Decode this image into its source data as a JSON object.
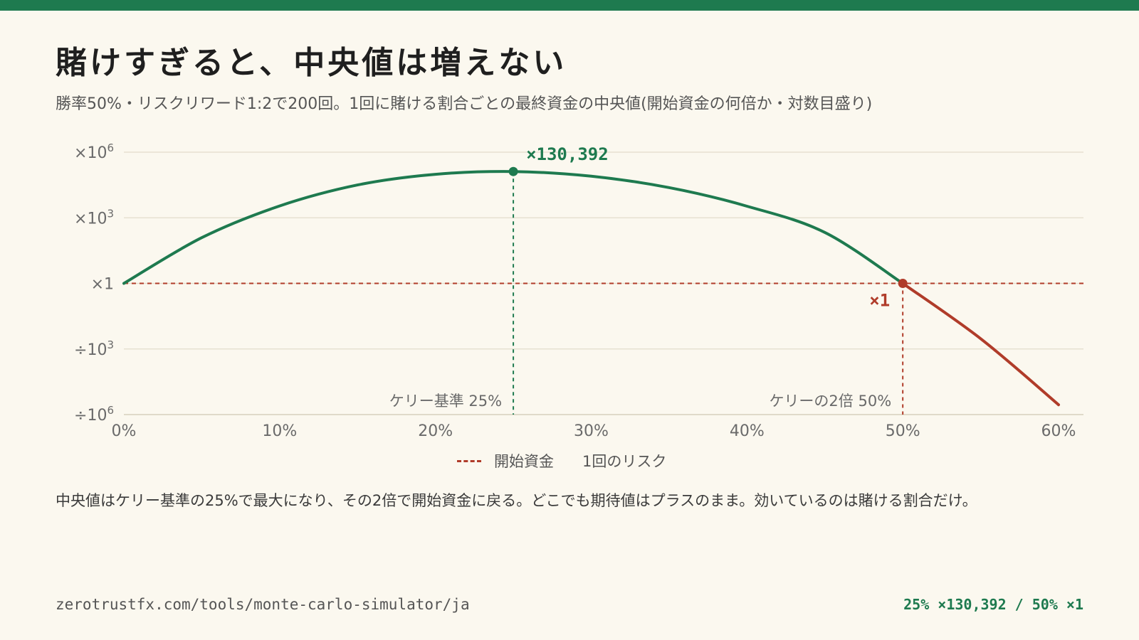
{
  "title": "賭けすぎると、中央値は増えない",
  "subtitle": "勝率50%・リスクリワード1:2で200回。1回に賭ける割合ごとの最終資金の中央値(開始資金の何倍か・対数目盛り)",
  "colors": {
    "accent": "#1e7a4f",
    "danger": "#b03c2a",
    "grid": "#e2dccb",
    "background": "#fbf8ef"
  },
  "chart_data": {
    "type": "line",
    "x_unit": "1回のリスク (%)",
    "y_unit": "最終資金の中央値(開始資金の倍数, log10)",
    "xlim": [
      0,
      60
    ],
    "ylim_log10": [
      -6,
      6
    ],
    "x_ticks": [
      {
        "value": 0,
        "label": "0%"
      },
      {
        "value": 10,
        "label": "10%"
      },
      {
        "value": 20,
        "label": "20%"
      },
      {
        "value": 30,
        "label": "30%"
      },
      {
        "value": 40,
        "label": "40%"
      },
      {
        "value": 50,
        "label": "50%"
      },
      {
        "value": 60,
        "label": "60%"
      }
    ],
    "y_ticks": [
      {
        "value": 6,
        "base": "×10",
        "exp": "6"
      },
      {
        "value": 3,
        "base": "×10",
        "exp": "3"
      },
      {
        "value": 0,
        "base": "×1",
        "exp": ""
      },
      {
        "value": -3,
        "base": "÷10",
        "exp": "3"
      },
      {
        "value": -6,
        "base": "÷10",
        "exp": "6"
      }
    ],
    "series": [
      {
        "x": [
          0,
          5,
          10,
          15,
          20,
          25,
          30,
          35,
          40,
          45,
          50,
          55,
          60
        ],
        "y": [
          0,
          2.09,
          3.54,
          4.5,
          4.99,
          5.115,
          4.9,
          4.38,
          3.53,
          2.33,
          0.0,
          -2.53,
          -5.55
        ]
      }
    ],
    "reference_line": {
      "y": 0,
      "label": "開始資金"
    },
    "markers": [
      {
        "x": 25,
        "y": 5.115,
        "label": "×130,392",
        "vline_label": "ケリー基準 25%",
        "color": "accent"
      },
      {
        "x": 50,
        "y": 0,
        "label": "×1",
        "vline_label": "ケリーの2倍 50%",
        "color": "danger"
      }
    ],
    "legend": [
      "開始資金",
      "1回のリスク"
    ]
  },
  "note": "中央値はケリー基準の25%で最大になり、その2倍で開始資金に戻る。どこでも期待値はプラスのまま。効いているのは賭ける割合だけ。",
  "footer": {
    "url": "zerotrustfx.com/tools/monte-carlo-simulator/ja",
    "summary": "25% ×130,392 / 50% ×1"
  }
}
